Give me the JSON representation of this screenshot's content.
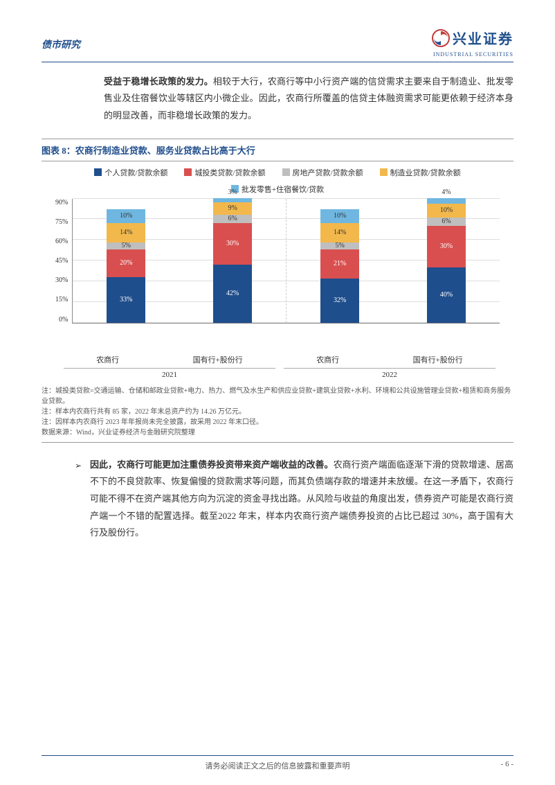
{
  "header": {
    "category": "债市研究",
    "logo_cn": "兴业证券",
    "logo_en": "INDUSTRIAL SECURITIES"
  },
  "para1": {
    "bold_lead": "受益于稳增长政策的发力。",
    "rest": "相较于大行，农商行等中小行资产端的信贷需求主要来自于制造业、批发零售业及住宿餐饮业等辖区内小微企业。因此，农商行所覆盖的信贷主体融资需求可能更依赖于经济本身的明显改善，而非稳增长政策的发力。"
  },
  "chart": {
    "title": "图表 8：农商行制造业贷款、服务业贷款占比高于大行",
    "legend": [
      {
        "label": "个人贷款/贷款余额",
        "color": "#1f4e8c"
      },
      {
        "label": "城投类贷款/贷款余额",
        "color": "#d94f4f"
      },
      {
        "label": "房地产贷款/贷款余额",
        "color": "#bfbfbf"
      },
      {
        "label": "制造业贷款/贷款余额",
        "color": "#f2b84b"
      },
      {
        "label": "批发零售+住宿餐饮/贷款",
        "color": "#6fb7e0"
      }
    ],
    "ymax": 90,
    "yticks": [
      "90%",
      "75%",
      "60%",
      "45%",
      "30%",
      "15%",
      "0%"
    ],
    "grid_color": "#dddddd",
    "groups": [
      {
        "year": "2021",
        "bars": [
          {
            "cat": "农商行",
            "top": "",
            "segs": [
              {
                "v": 33,
                "label": "33%",
                "color": "#1f4e8c",
                "lc": "light"
              },
              {
                "v": 20,
                "label": "20%",
                "color": "#d94f4f",
                "lc": "light"
              },
              {
                "v": 5,
                "label": "5%",
                "color": "#bfbfbf",
                "lc": "dark"
              },
              {
                "v": 14,
                "label": "14%",
                "color": "#f2b84b",
                "lc": "dark"
              },
              {
                "v": 10,
                "label": "10%",
                "color": "#6fb7e0",
                "lc": "dark"
              }
            ]
          },
          {
            "cat": "国有行+股份行",
            "top": "3%",
            "segs": [
              {
                "v": 42,
                "label": "42%",
                "color": "#1f4e8c",
                "lc": "light"
              },
              {
                "v": 30,
                "label": "30%",
                "color": "#d94f4f",
                "lc": "light"
              },
              {
                "v": 6,
                "label": "6%",
                "color": "#bfbfbf",
                "lc": "dark"
              },
              {
                "v": 9,
                "label": "9%",
                "color": "#f2b84b",
                "lc": "dark"
              },
              {
                "v": 3,
                "label": "",
                "color": "#6fb7e0",
                "lc": "dark"
              }
            ]
          }
        ]
      },
      {
        "year": "2022",
        "bars": [
          {
            "cat": "农商行",
            "top": "",
            "segs": [
              {
                "v": 32,
                "label": "32%",
                "color": "#1f4e8c",
                "lc": "light"
              },
              {
                "v": 21,
                "label": "21%",
                "color": "#d94f4f",
                "lc": "light"
              },
              {
                "v": 5,
                "label": "5%",
                "color": "#bfbfbf",
                "lc": "dark"
              },
              {
                "v": 14,
                "label": "14%",
                "color": "#f2b84b",
                "lc": "dark"
              },
              {
                "v": 10,
                "label": "10%",
                "color": "#6fb7e0",
                "lc": "dark"
              }
            ]
          },
          {
            "cat": "国有行+股份行",
            "top": "4%",
            "segs": [
              {
                "v": 40,
                "label": "40%",
                "color": "#1f4e8c",
                "lc": "light"
              },
              {
                "v": 30,
                "label": "30%",
                "color": "#d94f4f",
                "lc": "light"
              },
              {
                "v": 6,
                "label": "6%",
                "color": "#bfbfbf",
                "lc": "dark"
              },
              {
                "v": 10,
                "label": "10%",
                "color": "#f2b84b",
                "lc": "dark"
              },
              {
                "v": 4,
                "label": "",
                "color": "#6fb7e0",
                "lc": "dark"
              }
            ]
          }
        ]
      }
    ],
    "notes": [
      "注：城投类贷款=交通运输、仓储和邮政业贷款+电力、热力、燃气及水生产和供应业贷款+建筑业贷款+水利、环境和公共设施管理业贷款+租赁和商务服务业贷款。",
      "注：样本内农商行共有 85 家，2022 年末总资产约为 14.26 万亿元。",
      "注：因样本内农商行 2023 年年报尚未完全披露，故采用 2022 年末口径。",
      "数据来源：Wind，兴业证券经济与金融研究院整理"
    ]
  },
  "para2": {
    "bullet": "➢",
    "bold_lead": "因此，农商行可能更加注重债券投资带来资产端收益的改善。",
    "rest": "农商行资产端面临逐渐下滑的贷款增速、居高不下的不良贷款率、恢复偏慢的贷款需求等问题，而其负债端存款的增速并未放缓。在这一矛盾下，农商行可能不得不在资产端其他方向为沉淀的资金寻找出路。从风险与收益的角度出发，债券资产可能是农商行资产端一个不错的配置选择。截至2022 年末，样本内农商行资产端债券投资的占比已超过 30%，高于国有大行及股份行。"
  },
  "footer": {
    "center": "请务必阅读正文之后的信息披露和重要声明",
    "page": "- 6 -"
  }
}
